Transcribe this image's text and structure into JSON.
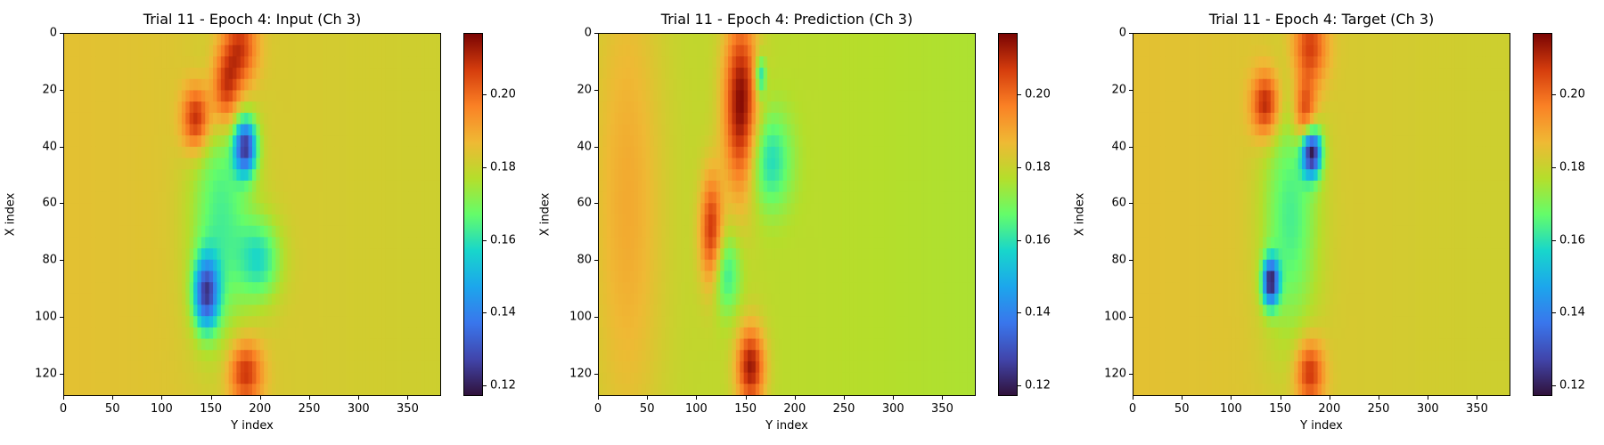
{
  "chart_data": [
    {
      "type": "heatmap",
      "title": "Trial 11 - Epoch 4: Input (Ch 3)",
      "xlabel": "Y index",
      "ylabel": "X index",
      "xlim": [
        0,
        384
      ],
      "ylim": [
        128,
        0
      ],
      "xticks": [
        "0",
        "50",
        "100",
        "150",
        "200",
        "250",
        "300",
        "350"
      ],
      "yticks": [
        "0",
        "20",
        "40",
        "60",
        "80",
        "100",
        "120"
      ],
      "colormap": "turbo",
      "colorbar_range": [
        0.117,
        0.217
      ],
      "colorbar_ticks": [
        "0.12",
        "0.14",
        "0.16",
        "0.18",
        "0.20"
      ],
      "background_value": 0.185,
      "features": [
        {
          "kind": "high",
          "x": 180,
          "y": 5,
          "sx": 12,
          "sy": 10,
          "v": 0.21
        },
        {
          "kind": "high",
          "x": 135,
          "y": 30,
          "sx": 10,
          "sy": 8,
          "v": 0.215
        },
        {
          "kind": "high",
          "x": 165,
          "y": 20,
          "sx": 10,
          "sy": 10,
          "v": 0.212
        },
        {
          "kind": "high",
          "x": 185,
          "y": 120,
          "sx": 12,
          "sy": 8,
          "v": 0.212
        },
        {
          "kind": "low",
          "x": 185,
          "y": 40,
          "sx": 8,
          "sy": 7,
          "v": 0.132
        },
        {
          "kind": "low",
          "x": 145,
          "y": 92,
          "sx": 9,
          "sy": 9,
          "v": 0.135
        },
        {
          "kind": "low",
          "x": 160,
          "y": 65,
          "sx": 22,
          "sy": 30,
          "v": 0.165
        },
        {
          "kind": "low",
          "x": 200,
          "y": 80,
          "sx": 15,
          "sy": 10,
          "v": 0.163
        }
      ]
    },
    {
      "type": "heatmap",
      "title": "Trial 11 - Epoch 4: Prediction (Ch 3)",
      "xlabel": "Y index",
      "ylabel": "X index",
      "xlim": [
        0,
        384
      ],
      "ylim": [
        128,
        0
      ],
      "xticks": [
        "0",
        "50",
        "100",
        "150",
        "200",
        "250",
        "300",
        "350"
      ],
      "yticks": [
        "0",
        "20",
        "40",
        "60",
        "80",
        "100",
        "120"
      ],
      "colormap": "turbo",
      "colorbar_range": [
        0.117,
        0.217
      ],
      "colorbar_ticks": [
        "0.12",
        "0.14",
        "0.16",
        "0.18",
        "0.20"
      ],
      "background_value": 0.18,
      "features": [
        {
          "kind": "high",
          "x": 145,
          "y": 25,
          "sx": 12,
          "sy": 22,
          "v": 0.218
        },
        {
          "kind": "high",
          "x": 115,
          "y": 70,
          "sx": 8,
          "sy": 14,
          "v": 0.21
        },
        {
          "kind": "high",
          "x": 155,
          "y": 118,
          "sx": 10,
          "sy": 10,
          "v": 0.215
        },
        {
          "kind": "high",
          "x": 30,
          "y": 60,
          "sx": 25,
          "sy": 60,
          "v": 0.19
        },
        {
          "kind": "low",
          "x": 175,
          "y": 45,
          "sx": 15,
          "sy": 12,
          "v": 0.16
        },
        {
          "kind": "low",
          "x": 130,
          "y": 85,
          "sx": 10,
          "sy": 10,
          "v": 0.162
        },
        {
          "kind": "low",
          "x": 165,
          "y": 15,
          "sx": 4,
          "sy": 5,
          "v": 0.155
        }
      ]
    },
    {
      "type": "heatmap",
      "title": "Trial 11 - Epoch 4: Target (Ch 3)",
      "xlabel": "Y index",
      "ylabel": "X index",
      "xlim": [
        0,
        384
      ],
      "ylim": [
        128,
        0
      ],
      "xticks": [
        "0",
        "50",
        "100",
        "150",
        "200",
        "250",
        "300",
        "350"
      ],
      "yticks": [
        "0",
        "20",
        "40",
        "60",
        "80",
        "100",
        "120"
      ],
      "colormap": "turbo",
      "colorbar_range": [
        0.117,
        0.217
      ],
      "colorbar_ticks": [
        "0.12",
        "0.14",
        "0.16",
        "0.18",
        "0.20"
      ],
      "background_value": 0.185,
      "features": [
        {
          "kind": "high",
          "x": 180,
          "y": 5,
          "sx": 12,
          "sy": 10,
          "v": 0.21
        },
        {
          "kind": "high",
          "x": 135,
          "y": 25,
          "sx": 10,
          "sy": 8,
          "v": 0.215
        },
        {
          "kind": "high",
          "x": 175,
          "y": 28,
          "sx": 8,
          "sy": 8,
          "v": 0.212
        },
        {
          "kind": "high",
          "x": 180,
          "y": 120,
          "sx": 10,
          "sy": 8,
          "v": 0.212
        },
        {
          "kind": "low",
          "x": 182,
          "y": 42,
          "sx": 7,
          "sy": 6,
          "v": 0.125
        },
        {
          "kind": "low",
          "x": 140,
          "y": 88,
          "sx": 6,
          "sy": 6,
          "v": 0.128
        },
        {
          "kind": "low",
          "x": 160,
          "y": 65,
          "sx": 20,
          "sy": 30,
          "v": 0.165
        }
      ]
    }
  ]
}
